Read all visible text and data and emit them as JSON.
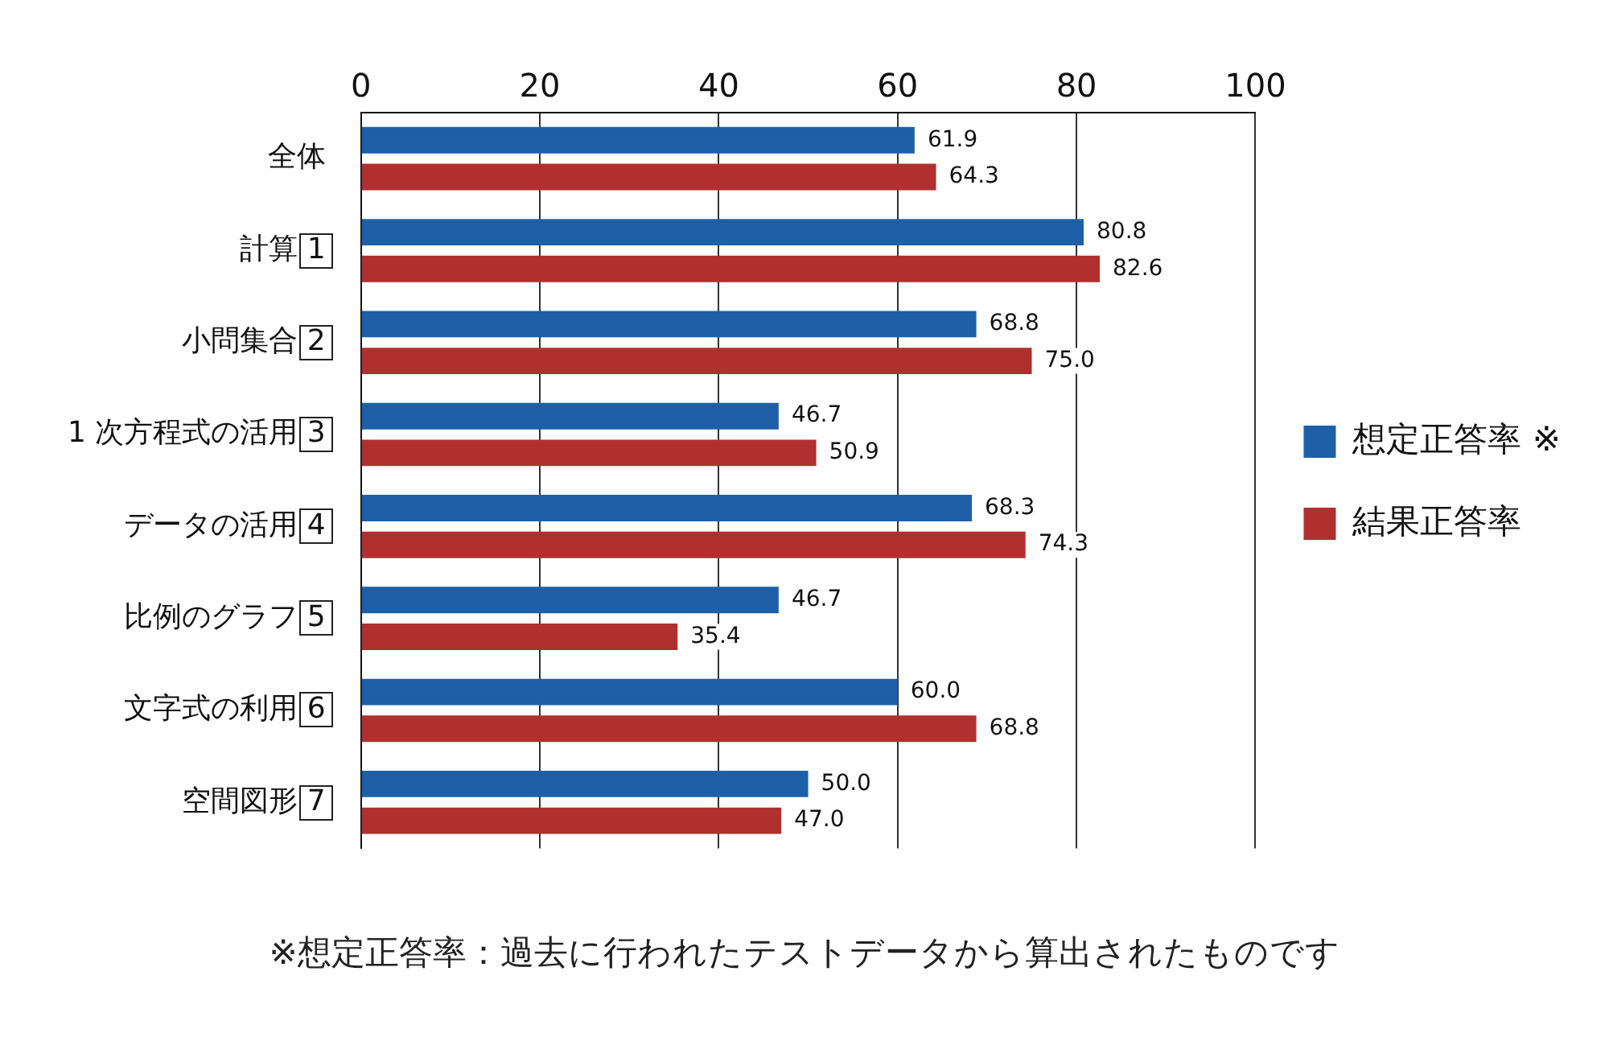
{
  "chart_data": {
    "type": "bar",
    "orientation": "horizontal",
    "categories": [
      "全体",
      "計算 1",
      "小問集合 2",
      "1 次方程式の活用 3",
      "データの活用 4",
      "比例のグラフ 5",
      "文字式の利用 6",
      "空間図形 7"
    ],
    "series": [
      {
        "name": "想定正答率 ※",
        "color": "#1f5fa8",
        "values": [
          61.9,
          80.8,
          68.8,
          46.7,
          68.3,
          46.7,
          60.0,
          50.0
        ],
        "value_labels": [
          "61.9",
          "80.8",
          "68.8",
          "46.7",
          "68.3",
          "46.7",
          "60.0",
          "50.0"
        ]
      },
      {
        "name": "結果正答率",
        "color": "#b03030",
        "values": [
          64.3,
          82.6,
          75.0,
          50.9,
          74.3,
          35.4,
          68.8,
          47.0
        ],
        "value_labels": [
          "64.3",
          "82.6",
          "75.0",
          "50.9",
          "74.3",
          "35.4",
          "68.8",
          "47.0"
        ]
      }
    ],
    "xlim": [
      0,
      100
    ],
    "xticks": [
      0,
      20,
      40,
      60,
      80,
      100
    ],
    "grid": "x",
    "legend": "right",
    "annotations": [
      "※想定正答率：過去に行われたテストデータから算出されたものです"
    ]
  }
}
